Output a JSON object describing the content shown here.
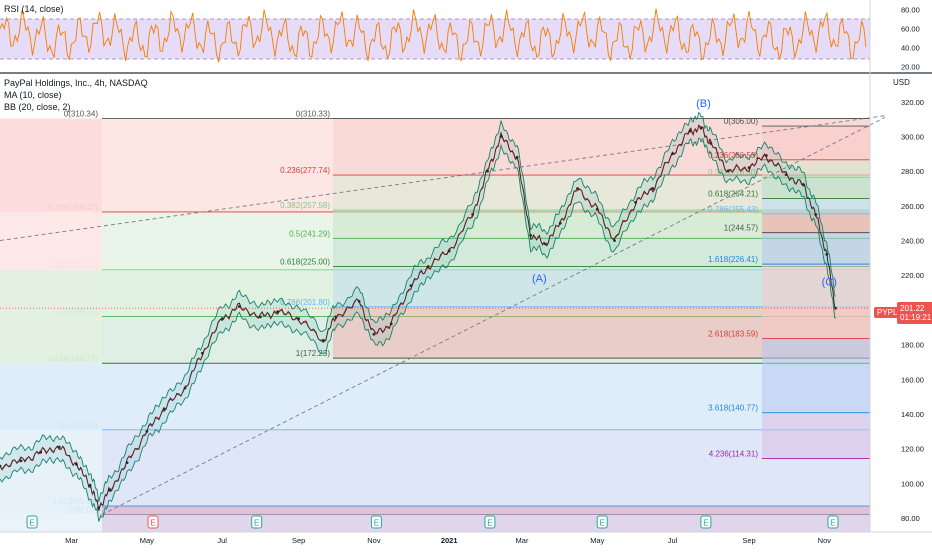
{
  "rsi_panel": {
    "title": "RSI (14, close)",
    "ticks": [
      "80.00",
      "60.00",
      "40.00",
      "20.00"
    ],
    "band_upper": 70,
    "band_lower": 30,
    "colors": {
      "line": "#f57c00",
      "band": "#e1d5f7"
    }
  },
  "main_panel": {
    "title_lines": [
      "PayPal Holdings, Inc., 4h, NASDAQ",
      "MA (10, close)",
      "BB (20, close, 2)"
    ],
    "currency": "USD",
    "ticker": "PYPL",
    "price_label": "201.22",
    "countdown_label": "01:19:21"
  },
  "chart_data": {
    "type": "line",
    "title": "PayPal Holdings, Inc., 4h, NASDAQ",
    "xlabel": "",
    "ylabel": "",
    "x_tick_labels": [
      "Mar",
      "May",
      "Jul",
      "Sep",
      "Nov",
      "2021",
      "Mar",
      "May",
      "Jul",
      "Sep",
      "Nov"
    ],
    "x_tick_dates": [
      "2020-03-01",
      "2020-05-01",
      "2020-07-01",
      "2020-09-01",
      "2020-11-01",
      "2021-01-01",
      "2021-03-01",
      "2021-05-01",
      "2021-07-01",
      "2021-09-01",
      "2021-11-01"
    ],
    "x_range": [
      "2020-01-03",
      "2021-12-08"
    ],
    "y_tick_labels": [
      "320.00",
      "300.00",
      "280.00",
      "260.00",
      "240.00",
      "220.00",
      "200.00",
      "180.00",
      "160.00",
      "140.00",
      "120.00",
      "100.00",
      "80.00"
    ],
    "ylim": [
      72,
      336
    ],
    "grid": false,
    "series": [
      {
        "name": "PayPal Holdings, Inc., 4h, NASDAQ",
        "color": "#2b2b2b",
        "x": [
          "2020-01-03",
          "2020-01-20",
          "2020-02-05",
          "2020-02-20",
          "2020-03-05",
          "2020-03-16",
          "2020-03-23",
          "2020-04-01",
          "2020-04-15",
          "2020-05-01",
          "2020-05-15",
          "2020-06-01",
          "2020-06-15",
          "2020-07-01",
          "2020-07-15",
          "2020-08-01",
          "2020-08-15",
          "2020-09-01",
          "2020-09-21",
          "2020-10-01",
          "2020-10-20",
          "2020-11-01",
          "2020-11-15",
          "2020-12-01",
          "2020-12-15",
          "2021-01-01",
          "2021-01-20",
          "2021-02-01",
          "2021-02-12",
          "2021-02-25",
          "2021-03-08",
          "2021-03-20",
          "2021-04-01",
          "2021-04-15",
          "2021-05-01",
          "2021-05-15",
          "2021-06-01",
          "2021-06-15",
          "2021-07-01",
          "2021-07-15",
          "2021-07-24",
          "2021-08-01",
          "2021-08-15",
          "2021-09-01",
          "2021-09-15",
          "2021-10-01",
          "2021-10-15",
          "2021-10-25",
          "2021-11-03",
          "2021-11-10"
        ],
        "values": [
          110,
          113,
          118,
          121,
          111,
          99,
          86,
          96,
          112,
          130,
          143,
          155,
          175,
          195,
          202,
          196,
          199,
          195,
          182,
          196,
          205,
          186,
          192,
          214,
          225,
          234,
          255,
          280,
          300,
          288,
          243,
          238,
          250,
          270,
          258,
          240,
          262,
          270,
          290,
          303,
          305,
          296,
          280,
          282,
          289,
          278,
          272,
          255,
          232,
          201
        ]
      }
    ],
    "annotations": [
      {
        "text": "(A)",
        "x": "2021-03-15",
        "y": 216
      },
      {
        "text": "(B)",
        "x": "2021-07-26",
        "y": 317
      },
      {
        "text": "(C)",
        "x": "2021-11-05",
        "y": 214
      }
    ],
    "fib_sets": [
      {
        "levels": [
          {
            "label": "0(310.34)",
            "value": 310.34,
            "color": "#555555"
          },
          {
            "label": "0.236(256.47)",
            "value": 256.47,
            "color": "#e53935"
          },
          {
            "label": "0.382(223.14)",
            "value": 223.14,
            "color": "#81c784"
          },
          {
            "label": "0.5(196.21)",
            "value": 196.21,
            "color": "#4caf50"
          },
          {
            "label": "0.618(169.27)",
            "value": 169.27,
            "color": "#2e7d32"
          },
          {
            "label": "0.786(130.92)",
            "value": 130.92,
            "color": "#64b5f6"
          },
          {
            "label": "1(82.07)",
            "value": 82.07,
            "color": "#555555"
          },
          {
            "label": "1.618(86.92)",
            "value": 86.92,
            "color": "#1e88e5"
          }
        ]
      },
      {
        "levels": [
          {
            "label": "0(310.33)",
            "value": 310.33,
            "color": "#555555"
          },
          {
            "label": "0.236(277.74)",
            "value": 277.74,
            "color": "#e53935"
          },
          {
            "label": "0.382(257.58)",
            "value": 257.58,
            "color": "#81c784"
          },
          {
            "label": "0.5(241.29)",
            "value": 241.29,
            "color": "#4caf50"
          },
          {
            "label": "0.618(225.00)",
            "value": 225.0,
            "color": "#2e7d32"
          },
          {
            "label": "0.786(201.80)",
            "value": 201.8,
            "color": "#64b5f6"
          },
          {
            "label": "1(172.23)",
            "value": 172.23,
            "color": "#555555"
          }
        ]
      },
      {
        "levels": [
          {
            "label": "0(306.00)",
            "value": 306.0,
            "color": "#555555"
          },
          {
            "label": "0.236(286.53)",
            "value": 286.53,
            "color": "#e53935"
          },
          {
            "label": "0.382(276.50)",
            "value": 276.5,
            "color": "#81c784"
          },
          {
            "label": "0.618(264.21)",
            "value": 264.21,
            "color": "#2e7d32"
          },
          {
            "label": "0.786(255.43)",
            "value": 255.43,
            "color": "#64b5f6"
          },
          {
            "label": "1(244.57)",
            "value": 244.57,
            "color": "#555555"
          },
          {
            "label": "1.618(226.41)",
            "value": 226.41,
            "color": "#1e88e5"
          },
          {
            "label": "2.618(183.59)",
            "value": 183.59,
            "color": "#e53935"
          },
          {
            "label": "3.618(140.77)",
            "value": 140.77,
            "color": "#1e88e5"
          },
          {
            "label": "4.236(114.31)",
            "value": 114.31,
            "color": "#9c27b0"
          }
        ]
      }
    ],
    "earnings_markers": [
      {
        "text": "E",
        "x": "2020-01-29"
      },
      {
        "text": "E",
        "x": "2020-05-06"
      },
      {
        "text": "E",
        "x": "2020-07-29"
      },
      {
        "text": "E",
        "x": "2020-11-03"
      },
      {
        "text": "E",
        "x": "2021-02-03"
      },
      {
        "text": "E",
        "x": "2021-05-05"
      },
      {
        "text": "E",
        "x": "2021-07-28"
      },
      {
        "text": "E",
        "x": "2021-11-08"
      }
    ]
  }
}
